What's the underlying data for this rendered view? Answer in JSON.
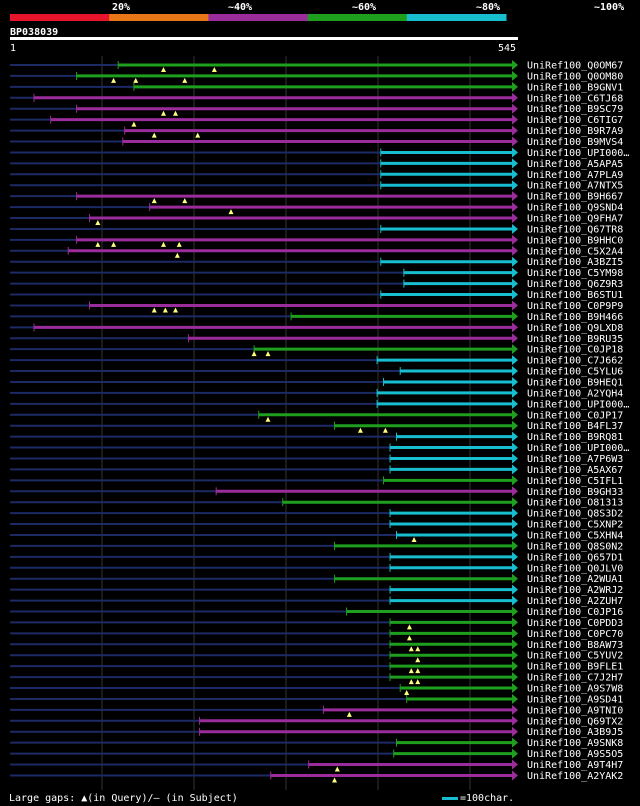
{
  "query_id": "BP038039",
  "query_length": 545,
  "query_start_label": "1",
  "query_end_label": "545",
  "identity_legend": [
    {
      "label": "20%",
      "color": "#e8142b"
    },
    {
      "label": "~40%",
      "color": "#e87817"
    },
    {
      "label": "~60%",
      "color": "#9b2c9b"
    },
    {
      "label": "~80%",
      "color": "#1ea01e"
    },
    {
      "label": "~100%",
      "color": "#17becf"
    }
  ],
  "footer": {
    "gaps_label": "Large gaps: ▲(in Query)/— (in Subject)",
    "scale_label": "=100char."
  },
  "chart_data": {
    "type": "alignment-overview",
    "x_range": [
      1,
      545
    ],
    "hits": [
      {
        "id": "UniRef100_Q0OM67",
        "start": 118,
        "color": "green",
        "triangles": [
          167,
          222
        ]
      },
      {
        "id": "UniRef100_Q0OM80",
        "start": 73,
        "color": "green",
        "triangles": [
          113,
          137,
          190
        ]
      },
      {
        "id": "UniRef100_B9GNV1",
        "start": 135,
        "color": "green",
        "triangles": []
      },
      {
        "id": "UniRef100_C6TJ68",
        "start": 27,
        "color": "purple",
        "triangles": []
      },
      {
        "id": "UniRef100_B9SC79",
        "start": 73,
        "color": "purple",
        "triangles": [
          167,
          180
        ]
      },
      {
        "id": "UniRef100_C6TIG7",
        "start": 45,
        "color": "purple",
        "triangles": [
          135
        ]
      },
      {
        "id": "UniRef100_B9R7A9",
        "start": 125,
        "color": "purple",
        "triangles": [
          157,
          204
        ]
      },
      {
        "id": "UniRef100_B9MVS4",
        "start": 123,
        "color": "purple",
        "triangles": []
      },
      {
        "id": "UniRef100_UPI000…",
        "start": 402,
        "color": "cyan",
        "triangles": []
      },
      {
        "id": "UniRef100_A5APA5",
        "start": 402,
        "color": "cyan",
        "triangles": []
      },
      {
        "id": "UniRef100_A7PLA9",
        "start": 402,
        "color": "cyan",
        "triangles": []
      },
      {
        "id": "UniRef100_A7NTX5",
        "start": 402,
        "color": "cyan",
        "triangles": []
      },
      {
        "id": "UniRef100_B9H667",
        "start": 73,
        "color": "purple",
        "triangles": [
          157,
          190
        ]
      },
      {
        "id": "UniRef100_Q9SND4",
        "start": 152,
        "color": "purple",
        "triangles": [
          240
        ]
      },
      {
        "id": "UniRef100_Q9FHA7",
        "start": 87,
        "color": "purple",
        "triangles": [
          96
        ]
      },
      {
        "id": "UniRef100_Q67TR8",
        "start": 402,
        "color": "cyan",
        "triangles": []
      },
      {
        "id": "UniRef100_B9HHC0",
        "start": 73,
        "color": "purple",
        "triangles": [
          96,
          113,
          167,
          184
        ]
      },
      {
        "id": "UniRef100_C5X2A4",
        "start": 64,
        "color": "purple",
        "triangles": [
          182
        ]
      },
      {
        "id": "UniRef100_A3BZI5",
        "start": 402,
        "color": "cyan",
        "triangles": []
      },
      {
        "id": "UniRef100_C5YM98",
        "start": 427,
        "color": "cyan",
        "triangles": []
      },
      {
        "id": "UniRef100_Q6Z9R3",
        "start": 427,
        "color": "cyan",
        "triangles": []
      },
      {
        "id": "UniRef100_B6STU1",
        "start": 402,
        "color": "cyan",
        "triangles": []
      },
      {
        "id": "UniRef100_C0P9P9",
        "start": 87,
        "color": "purple",
        "triangles": [
          157,
          169,
          180
        ]
      },
      {
        "id": "UniRef100_B9H466",
        "start": 305,
        "color": "green",
        "triangles": []
      },
      {
        "id": "UniRef100_Q9LXD8",
        "start": 27,
        "color": "purple",
        "triangles": []
      },
      {
        "id": "UniRef100_B9RU35",
        "start": 194,
        "color": "purple",
        "triangles": []
      },
      {
        "id": "UniRef100_C0JP18",
        "start": 265,
        "color": "green",
        "triangles": [
          265,
          280
        ]
      },
      {
        "id": "UniRef100_C7J662",
        "start": 398,
        "color": "cyan",
        "triangles": []
      },
      {
        "id": "UniRef100_C5YLU6",
        "start": 423,
        "color": "cyan",
        "triangles": []
      },
      {
        "id": "UniRef100_B9HEQ1",
        "start": 405,
        "color": "cyan",
        "triangles": []
      },
      {
        "id": "UniRef100_A2YQH4",
        "start": 398,
        "color": "cyan",
        "triangles": []
      },
      {
        "id": "UniRef100_UPI000…",
        "start": 398,
        "color": "cyan",
        "triangles": []
      },
      {
        "id": "UniRef100_C0JP17",
        "start": 270,
        "color": "green",
        "triangles": [
          280
        ]
      },
      {
        "id": "UniRef100_B4FL37",
        "start": 352,
        "color": "green",
        "triangles": [
          380,
          407
        ]
      },
      {
        "id": "UniRef100_B9RQ81",
        "start": 419,
        "color": "cyan",
        "triangles": []
      },
      {
        "id": "UniRef100_UPI000…",
        "start": 412,
        "color": "cyan",
        "triangles": []
      },
      {
        "id": "UniRef100_A7P6W3",
        "start": 412,
        "color": "cyan",
        "triangles": []
      },
      {
        "id": "UniRef100_A5AX67",
        "start": 412,
        "color": "cyan",
        "triangles": []
      },
      {
        "id": "UniRef100_C5IFL1",
        "start": 405,
        "color": "green",
        "triangles": []
      },
      {
        "id": "UniRef100_B9GH33",
        "start": 224,
        "color": "purple",
        "triangles": []
      },
      {
        "id": "UniRef100_O81313",
        "start": 296,
        "color": "green",
        "triangles": []
      },
      {
        "id": "UniRef100_Q8S3D2",
        "start": 412,
        "color": "cyan",
        "triangles": []
      },
      {
        "id": "UniRef100_C5XNP2",
        "start": 412,
        "color": "cyan",
        "triangles": []
      },
      {
        "id": "UniRef100_C5XHN4",
        "start": 419,
        "color": "cyan",
        "triangles": [
          438
        ]
      },
      {
        "id": "UniRef100_Q8S0N2",
        "start": 352,
        "color": "green",
        "triangles": []
      },
      {
        "id": "UniRef100_Q657D1",
        "start": 412,
        "color": "cyan",
        "triangles": []
      },
      {
        "id": "UniRef100_Q0JLV0",
        "start": 412,
        "color": "cyan",
        "triangles": []
      },
      {
        "id": "UniRef100_A2WUA1",
        "start": 352,
        "color": "green",
        "triangles": []
      },
      {
        "id": "UniRef100_A2WRJ2",
        "start": 412,
        "color": "cyan",
        "triangles": []
      },
      {
        "id": "UniRef100_A2ZUH7",
        "start": 412,
        "color": "cyan",
        "triangles": []
      },
      {
        "id": "UniRef100_C0JP16",
        "start": 365,
        "color": "green",
        "triangles": []
      },
      {
        "id": "UniRef100_C0PDD3",
        "start": 412,
        "color": "green",
        "triangles": [
          433
        ]
      },
      {
        "id": "UniRef100_C0PC70",
        "start": 412,
        "color": "green",
        "triangles": [
          433
        ]
      },
      {
        "id": "UniRef100_B8AW73",
        "start": 412,
        "color": "green",
        "triangles": [
          435,
          442
        ]
      },
      {
        "id": "UniRef100_C5YUV2",
        "start": 412,
        "color": "green",
        "triangles": [
          442
        ]
      },
      {
        "id": "UniRef100_B9FLE1",
        "start": 412,
        "color": "green",
        "triangles": [
          435,
          442
        ]
      },
      {
        "id": "UniRef100_C7J2H7",
        "start": 412,
        "color": "green",
        "triangles": [
          435,
          442
        ]
      },
      {
        "id": "UniRef100_A9S7W8",
        "start": 423,
        "color": "green",
        "triangles": [
          430
        ]
      },
      {
        "id": "UniRef100_A9SD41",
        "start": 430,
        "color": "green",
        "triangles": []
      },
      {
        "id": "UniRef100_A9TNI0",
        "start": 340,
        "color": "purple",
        "triangles": [
          368
        ]
      },
      {
        "id": "UniRef100_Q69TX2",
        "start": 206,
        "color": "purple",
        "triangles": []
      },
      {
        "id": "UniRef100_A3B9J5",
        "start": 206,
        "color": "purple",
        "triangles": []
      },
      {
        "id": "UniRef100_A9SNK8",
        "start": 419,
        "color": "green",
        "triangles": []
      },
      {
        "id": "UniRef100_A9S5O5",
        "start": 416,
        "color": "green",
        "triangles": []
      },
      {
        "id": "UniRef100_A9T4H7",
        "start": 324,
        "color": "purple",
        "triangles": [
          355
        ]
      },
      {
        "id": "UniRef100_A2YAK2",
        "start": 283,
        "color": "purple",
        "triangles": [
          352
        ]
      }
    ]
  }
}
